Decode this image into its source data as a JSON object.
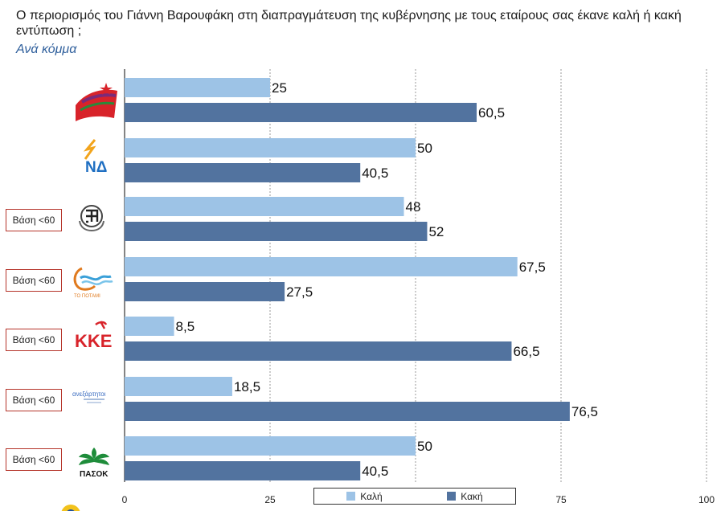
{
  "header": {
    "title": "Ο περιορισμός του Γιάννη Βαρουφάκη στη διαπραγμάτευση της κυβέρνησης με τους εταίρους σας έκανε καλή ή κακή εντύπωση ;",
    "subtitle": "Ανά κόμμα"
  },
  "colors": {
    "good": "#9dc3e6",
    "bad": "#52739f",
    "base_border": "#b5342a"
  },
  "party_logos": [
    "syriza-logo",
    "nd-logo",
    "golden-dawn-logo",
    "potami-logo",
    "kke-logo",
    "anel-logo",
    "pasok-logo"
  ],
  "logo_text": {
    "nd": "ΝΔ",
    "potami": "ΤΟ ΠΟΤΑΜΙ",
    "kke": "ΚΚΕ",
    "pasok": "ΠΑΣΟΚ",
    "anel": "ανεξάρτητοι"
  },
  "base_notes": [
    "",
    "",
    "Βάση <60",
    "Βάση <60",
    "Βάση <60",
    "Βάση <60",
    "Βάση <60"
  ],
  "chart_data": {
    "type": "bar",
    "orientation": "horizontal",
    "categories": [
      "",
      "",
      "",
      "",
      "",
      "",
      ""
    ],
    "series": [
      {
        "name": "Καλή",
        "values": [
          25,
          50,
          48,
          67.5,
          8.5,
          18.5,
          50
        ]
      },
      {
        "name": "Κακή",
        "values": [
          60.5,
          40.5,
          52,
          27.5,
          66.5,
          76.5,
          40.5
        ]
      }
    ],
    "value_labels": [
      [
        "25",
        "50",
        "48",
        "67,5",
        "8,5",
        "18,5",
        "50"
      ],
      [
        "60,5",
        "40,5",
        "52",
        "27,5",
        "66,5",
        "76,5",
        "40,5"
      ]
    ],
    "xlim": [
      0,
      100
    ],
    "xticks": [
      0,
      25,
      50,
      75,
      100
    ],
    "xtick_labels": [
      "0",
      "25",
      "",
      "75",
      "100"
    ],
    "grid": true,
    "legend": "bottom-center"
  }
}
